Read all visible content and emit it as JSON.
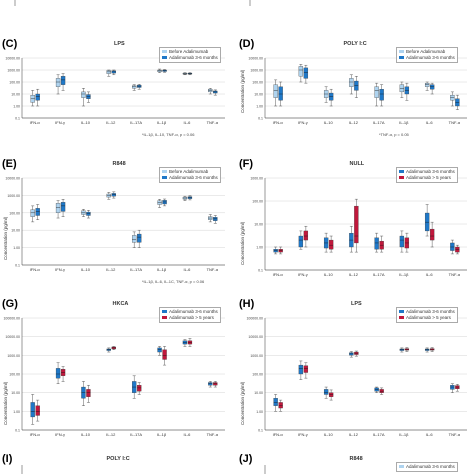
{
  "colors": {
    "before": "#aed3ef",
    "after": "#1f78c8",
    "after_dark": "#155a99",
    "red": "#c0183c",
    "grid": "#cccccc",
    "box_line": "#333333"
  },
  "panels": [
    {
      "id": "C",
      "label": "(C)",
      "title": "LPS",
      "legend": [
        "Before Adalimumab",
        "Adalimumab 3-6 months"
      ],
      "note": "*IL-1β, IL-10, TNF-α, p = 0.06",
      "ylabel": ""
    },
    {
      "id": "D",
      "label": "(D)",
      "title": "POLY I:C",
      "legend": [
        "Before Adalimumab",
        "Adalimumab 3-6 months"
      ],
      "note": "*TNF-α, p = 0.05",
      "ylabel": "Concentration (pg/ml)"
    },
    {
      "id": "E",
      "label": "(E)",
      "title": "R848",
      "legend": [
        "Before Adalimumab",
        "Adalimumab 3-6 months"
      ],
      "note": "*IL-1β, IL-6, IL-1C, TNF-α, p = 0.06",
      "ylabel": "Concentration (pg/ml)"
    },
    {
      "id": "F",
      "label": "(F)",
      "title": "NULL",
      "legend": [
        "Adalimumab 3-6 months",
        "Adalimumab > 5 years"
      ],
      "note": "",
      "ylabel": "Concentration (pg/ml)"
    },
    {
      "id": "G",
      "label": "(G)",
      "title": "HKCA",
      "legend": [
        "Adalimumab 3-6 months",
        "Adalimumab > 5 years"
      ],
      "note": "",
      "ylabel": "Concentration (pg/ml)"
    },
    {
      "id": "H",
      "label": "(H)",
      "title": "LPS",
      "legend": [
        "Adalimumab 3-6 months",
        "Adalimumab > 5 years"
      ],
      "note": "",
      "ylabel": "Concentration (pg/ml)"
    },
    {
      "id": "I",
      "label": "(I)",
      "title": "POLY I:C",
      "legend": [],
      "note": "",
      "ylabel": ""
    },
    {
      "id": "J",
      "label": "(J)",
      "title": "R848",
      "legend": [
        "Adalimumab 3-6 months"
      ],
      "note": "",
      "ylabel": ""
    }
  ],
  "chart_data": [
    {
      "panel": "C",
      "type": "box",
      "title": "LPS",
      "categories": [
        "IFN-α",
        "IFN-γ",
        "IL-10",
        "IL-12",
        "IL-17A",
        "IL-1β",
        "IL-6",
        "TNF-α"
      ],
      "ylabel": "Concentration (pg/ml)",
      "ylim": [
        0.1,
        10000
      ],
      "yscale": "log",
      "series": [
        {
          "name": "Before Adalimumab",
          "boxes": [
            [
              1,
              2,
              4,
              8,
              20
            ],
            [
              10,
              40,
              100,
              200,
              400
            ],
            [
              1,
              5,
              10,
              15,
              30
            ],
            [
              300,
              500,
              700,
              900,
              1000
            ],
            [
              20,
              30,
              40,
              50,
              60
            ],
            [
              600,
              700,
              900,
              1000,
              1200
            ],
            [
              400,
              450,
              500,
              550,
              600
            ],
            [
              10,
              15,
              20,
              25,
              30
            ]
          ]
        },
        {
          "name": "Adalimumab 3-6 months",
          "boxes": [
            [
              1,
              3,
              6,
              10,
              25
            ],
            [
              20,
              60,
              150,
              300,
              500
            ],
            [
              2,
              4,
              6,
              9,
              15
            ],
            [
              400,
              550,
              700,
              850,
              1000
            ],
            [
              25,
              35,
              45,
              55,
              65
            ],
            [
              650,
              750,
              900,
              1000,
              1100
            ],
            [
              400,
              460,
              500,
              540,
              600
            ],
            [
              8,
              12,
              15,
              18,
              22
            ]
          ]
        }
      ]
    },
    {
      "panel": "D",
      "type": "box",
      "title": "POLY I:C",
      "categories": [
        "IFN-α",
        "IFN-γ",
        "IL-10",
        "IL-12",
        "IL-17A",
        "IL-1β",
        "IL-6",
        "TNF-α"
      ],
      "ylabel": "Concentration (pg/ml)",
      "ylim": [
        0.1,
        10000
      ],
      "yscale": "log",
      "series": [
        {
          "name": "Before Adalimumab",
          "boxes": [
            [
              1,
              5,
              20,
              60,
              150
            ],
            [
              100,
              300,
              1000,
              2000,
              3000
            ],
            [
              2,
              5,
              10,
              20,
              40
            ],
            [
              10,
              40,
              100,
              200,
              400
            ],
            [
              1,
              5,
              20,
              40,
              80
            ],
            [
              5,
              15,
              30,
              60,
              100
            ],
            [
              20,
              40,
              60,
              80,
              100
            ],
            [
              1,
              3,
              5,
              8,
              15
            ]
          ]
        },
        {
          "name": "Adalimumab 3-6 months",
          "boxes": [
            [
              1,
              3,
              10,
              40,
              100
            ],
            [
              80,
              200,
              600,
              1500,
              2500
            ],
            [
              1,
              3,
              6,
              12,
              25
            ],
            [
              5,
              20,
              50,
              120,
              300
            ],
            [
              1,
              3,
              10,
              25,
              60
            ],
            [
              3,
              10,
              20,
              40,
              80
            ],
            [
              10,
              25,
              40,
              60,
              80
            ],
            [
              0.5,
              1,
              2,
              4,
              8
            ]
          ]
        }
      ]
    },
    {
      "panel": "E",
      "type": "box",
      "title": "R848",
      "categories": [
        "IFN-α",
        "IFN-γ",
        "IL-10",
        "IL-12",
        "IL-17A",
        "IL-1β",
        "IL-6",
        "TNF-α"
      ],
      "ylabel": "Concentration (pg/ml)",
      "ylim": [
        0.1,
        10000
      ],
      "yscale": "log",
      "series": [
        {
          "name": "Before Adalimumab",
          "boxes": [
            [
              30,
              60,
              100,
              150,
              250
            ],
            [
              50,
              100,
              200,
              350,
              500
            ],
            [
              60,
              80,
              100,
              130,
              160
            ],
            [
              600,
              800,
              1000,
              1200,
              1500
            ],
            [
              1,
              2,
              3,
              5,
              8
            ],
            [
              200,
              300,
              400,
              500,
              600
            ],
            [
              500,
              600,
              700,
              800,
              900
            ],
            [
              30,
              40,
              50,
              60,
              80
            ]
          ]
        },
        {
          "name": "Adalimumab 3-6 months",
          "boxes": [
            [
              40,
              70,
              120,
              180,
              300
            ],
            [
              60,
              120,
              250,
              400,
              600
            ],
            [
              50,
              70,
              90,
              110,
              140
            ],
            [
              700,
              900,
              1100,
              1300,
              1600
            ],
            [
              1,
              2,
              4,
              6,
              10
            ],
            [
              250,
              320,
              420,
              520,
              620
            ],
            [
              550,
              650,
              750,
              850,
              950
            ],
            [
              25,
              35,
              45,
              55,
              70
            ]
          ]
        }
      ]
    },
    {
      "panel": "F",
      "type": "box",
      "title": "NULL",
      "categories": [
        "IFN-α",
        "IFN-γ",
        "IL-10",
        "IL-12",
        "IL-17A",
        "IL-1β",
        "IL-6",
        "TNF-α"
      ],
      "ylabel": "Concentration (pg/ml)",
      "ylim": [
        0.1,
        1000
      ],
      "yscale": "log",
      "series": [
        {
          "name": "Adalimumab 3-6 months",
          "boxes": [
            [
              0.5,
              0.6,
              0.7,
              0.8,
              1
            ],
            [
              0.8,
              1,
              2,
              3,
              5
            ],
            [
              0.6,
              0.9,
              1.5,
              2.5,
              4
            ],
            [
              0.6,
              1,
              2,
              4,
              8
            ],
            [
              0.6,
              0.8,
              1.5,
              2.5,
              4
            ],
            [
              0.6,
              1,
              2,
              3,
              5
            ],
            [
              3,
              5,
              12,
              30,
              70
            ],
            [
              0.5,
              0.7,
              1,
              1.5,
              2
            ]
          ]
        },
        {
          "name": "Adalimumab > 5 years",
          "boxes": [
            [
              0.5,
              0.6,
              0.7,
              0.8,
              1
            ],
            [
              1,
              2,
              3,
              5,
              8
            ],
            [
              0.6,
              0.8,
              1.2,
              2,
              3
            ],
            [
              0.6,
              1.5,
              3,
              60,
              120
            ],
            [
              0.6,
              0.8,
              1.2,
              1.8,
              3
            ],
            [
              0.6,
              0.9,
              1.5,
              2.5,
              4
            ],
            [
              1,
              2,
              3,
              6,
              12
            ],
            [
              0.5,
              0.6,
              0.8,
              1,
              1.2
            ]
          ]
        }
      ]
    },
    {
      "panel": "G",
      "type": "box",
      "title": "HKCA",
      "categories": [
        "IFN-α",
        "IFN-γ",
        "IL-10",
        "IL-12",
        "IL-17A",
        "IL-1β",
        "IL-6",
        "TNF-α"
      ],
      "ylabel": "Concentration (pg/ml)",
      "ylim": [
        0.1,
        100000
      ],
      "yscale": "log",
      "series": [
        {
          "name": "Adalimumab 3-6 months",
          "boxes": [
            [
              0.2,
              0.5,
              1,
              3,
              8
            ],
            [
              30,
              60,
              100,
              200,
              400
            ],
            [
              2,
              5,
              10,
              20,
              40
            ],
            [
              1500,
              1800,
              2000,
              2200,
              2500
            ],
            [
              5,
              10,
              20,
              40,
              80
            ],
            [
              1000,
              1500,
              2000,
              2500,
              3000
            ],
            [
              3000,
              4000,
              5000,
              6000,
              7000
            ],
            [
              20,
              25,
              30,
              35,
              40
            ]
          ]
        },
        {
          "name": "Adalimumab > 5 years",
          "boxes": [
            [
              0.3,
              0.6,
              1,
              2,
              4
            ],
            [
              40,
              80,
              120,
              180,
              250
            ],
            [
              3,
              6,
              10,
              15,
              25
            ],
            [
              2000,
              2200,
              2500,
              2800,
              3000
            ],
            [
              8,
              12,
              18,
              25,
              35
            ],
            [
              300,
              600,
              1000,
              2000,
              3000
            ],
            [
              3000,
              4000,
              5000,
              6000,
              8000
            ],
            [
              20,
              25,
              30,
              35,
              40
            ]
          ]
        }
      ]
    },
    {
      "panel": "H",
      "type": "box",
      "title": "LPS",
      "categories": [
        "IFN-α",
        "IFN-γ",
        "IL-10",
        "IL-12",
        "IL-17A",
        "IL-1β",
        "IL-6",
        "TNF-α"
      ],
      "ylabel": "Concentration (pg/ml)",
      "ylim": [
        0.1,
        100000
      ],
      "yscale": "log",
      "series": [
        {
          "name": "Adalimumab 3-6 months",
          "boxes": [
            [
              1,
              2,
              3,
              5,
              8
            ],
            [
              50,
              100,
              200,
              300,
              500
            ],
            [
              5,
              8,
              10,
              15,
              20
            ],
            [
              800,
              1000,
              1200,
              1400,
              1600
            ],
            [
              10,
              12,
              15,
              18,
              20
            ],
            [
              1500,
              1800,
              2000,
              2200,
              2500
            ],
            [
              1500,
              1800,
              2000,
              2200,
              2500
            ],
            [
              10,
              15,
              20,
              25,
              30
            ]
          ]
        },
        {
          "name": "Adalimumab > 5 years",
          "boxes": [
            [
              1,
              1.5,
              2,
              3,
              4
            ],
            [
              60,
              120,
              200,
              280,
              400
            ],
            [
              4,
              6,
              8,
              10,
              14
            ],
            [
              900,
              1100,
              1300,
              1500,
              1700
            ],
            [
              8,
              10,
              12,
              15,
              18
            ],
            [
              1600,
              1900,
              2100,
              2300,
              2600
            ],
            [
              1600,
              1900,
              2100,
              2300,
              2600
            ],
            [
              12,
              16,
              20,
              24,
              28
            ]
          ]
        }
      ]
    }
  ]
}
